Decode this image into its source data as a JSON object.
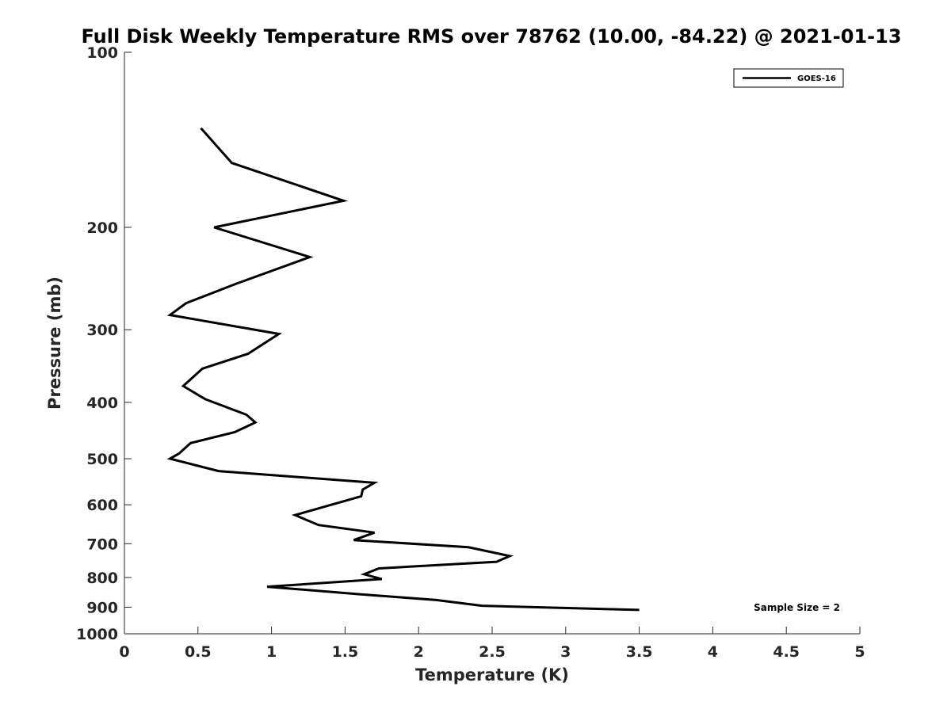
{
  "chart_data": {
    "type": "line",
    "title": "Full Disk Weekly Temperature RMS over 78762 (10.00, -84.22) @ 2021-01-13",
    "xlabel": "Temperature (K)",
    "ylabel": "Pressure (mb)",
    "xlim": [
      0,
      5
    ],
    "ylim": [
      100,
      1000
    ],
    "y_scale": "log",
    "y_reversed": true,
    "x_ticks": [
      0,
      0.5,
      1,
      1.5,
      2,
      2.5,
      3,
      3.5,
      4,
      4.5,
      5
    ],
    "x_tick_labels": [
      "0",
      "0.5",
      "1",
      "1.5",
      "2",
      "2.5",
      "3",
      "3.5",
      "4",
      "4.5",
      "5"
    ],
    "y_ticks": [
      100,
      200,
      300,
      400,
      500,
      600,
      700,
      800,
      900,
      1000
    ],
    "y_tick_labels": [
      "100",
      "200",
      "300",
      "400",
      "500",
      "600",
      "700",
      "800",
      "900",
      "1000"
    ],
    "grid": false,
    "legend_position": "top-right",
    "series": [
      {
        "name": "GOES-16",
        "color": "#000000",
        "x": [
          0.52,
          0.73,
          1.49,
          0.61,
          1.26,
          0.76,
          0.42,
          0.31,
          1.05,
          0.84,
          0.53,
          0.4,
          0.55,
          0.83,
          0.89,
          0.75,
          0.45,
          0.37,
          0.31,
          0.64,
          1.7,
          1.62,
          1.61,
          1.16,
          1.32,
          1.7,
          1.56,
          2.34,
          2.62,
          2.53,
          1.73,
          1.63,
          1.75,
          0.97,
          1.6,
          2.12,
          2.43,
          3.5
        ],
        "y": [
          135,
          155,
          180,
          200,
          225,
          250,
          270,
          283,
          305,
          330,
          350,
          375,
          395,
          420,
          433,
          450,
          470,
          490,
          500,
          525,
          550,
          565,
          580,
          625,
          650,
          670,
          690,
          710,
          735,
          752,
          772,
          790,
          805,
          830,
          855,
          875,
          895,
          910
        ]
      }
    ],
    "annotations": [
      "Sample Size = 2"
    ]
  }
}
